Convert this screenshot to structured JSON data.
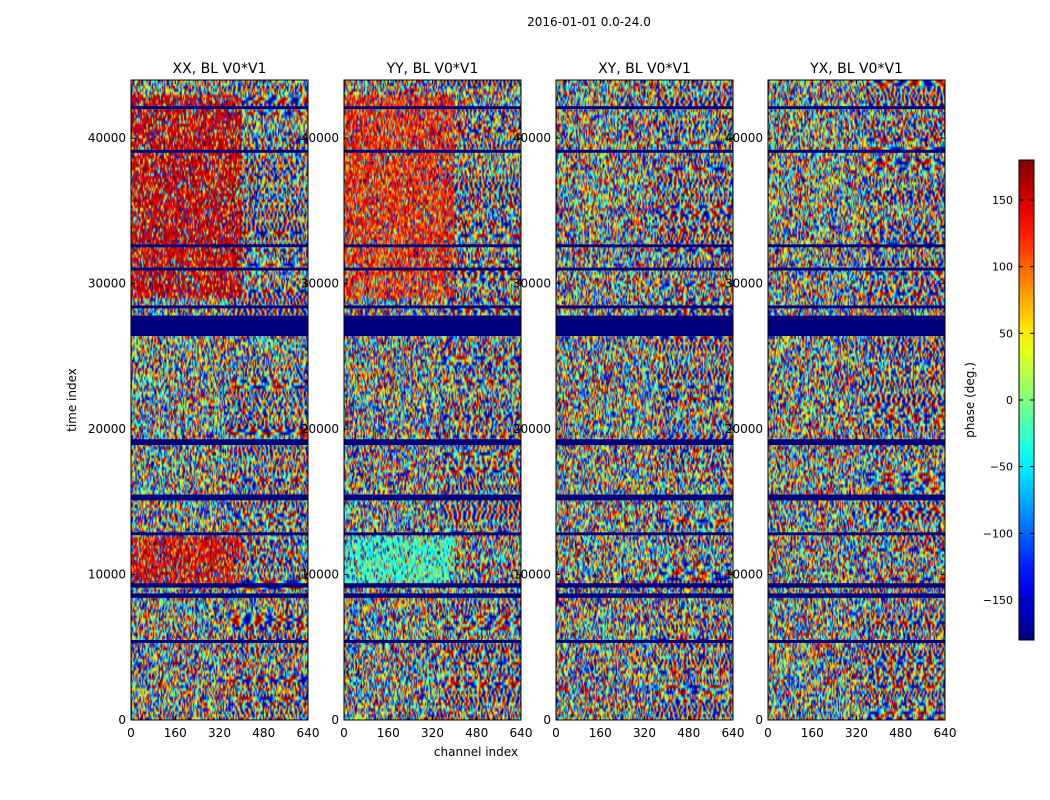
{
  "figure": {
    "suptitle": "2016-01-01 0.0-24.0"
  },
  "chart_data": {
    "type": "heatmap",
    "x_label": "channel index",
    "y_label": "time index",
    "x_range": [
      0,
      640
    ],
    "y_range": [
      0,
      44000
    ],
    "x_ticks": [
      "0",
      "160",
      "320",
      "480",
      "640"
    ],
    "x_tick_values": [
      0,
      160,
      320,
      480,
      640
    ],
    "y_ticks": [
      "0",
      "10000",
      "20000",
      "30000",
      "40000"
    ],
    "y_tick_values": [
      0,
      10000,
      20000,
      30000,
      40000
    ],
    "panels": [
      {
        "title": "XX, BL V0*V1",
        "bias": "red",
        "bias_x_end": 400
      },
      {
        "title": "YY, BL V0*V1",
        "bias": "red-cyan",
        "bias_x_end": 400
      },
      {
        "title": "XY, BL V0*V1",
        "bias": "none",
        "bias_x_end": 0
      },
      {
        "title": "YX, BL V0*V1",
        "bias": "none",
        "bias_x_end": 0
      }
    ],
    "flagged_time_bands": [
      [
        26400,
        27800
      ],
      [
        28300,
        28500
      ],
      [
        18900,
        19300
      ],
      [
        15100,
        15500
      ],
      [
        12700,
        12900
      ],
      [
        9100,
        9400
      ],
      [
        8400,
        8700
      ],
      [
        5300,
        5500
      ],
      [
        39000,
        39200
      ],
      [
        42000,
        42200
      ],
      [
        32500,
        32700
      ],
      [
        30900,
        31100
      ]
    ],
    "colorbar": {
      "label": "phase (deg.)",
      "range": [
        -180,
        180
      ],
      "ticks": [
        "150",
        "100",
        "50",
        "0",
        "−50",
        "−100",
        "−150"
      ],
      "tick_values": [
        150,
        100,
        50,
        0,
        -50,
        -100,
        -150
      ],
      "colormap": "jet"
    }
  }
}
